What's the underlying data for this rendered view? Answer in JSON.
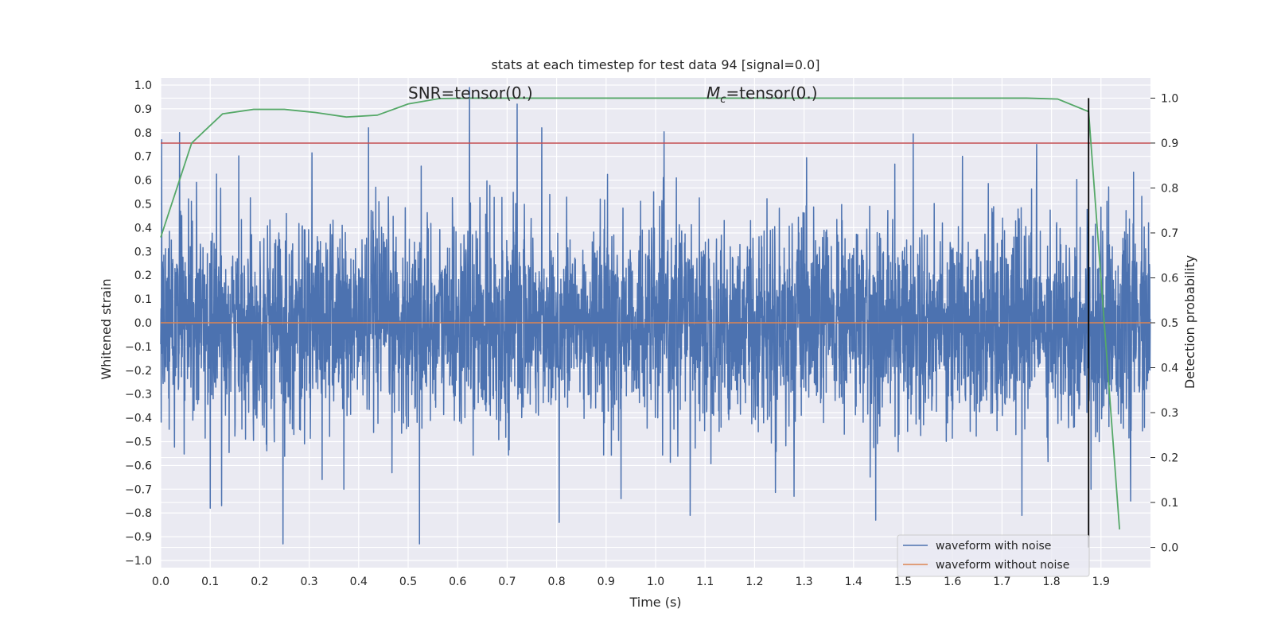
{
  "chart_data": {
    "type": "line",
    "title": "stats at each timestep for test data 94 [signal=0.0]",
    "xlabel": "Time (s)",
    "ylabel": "Whitened strain",
    "y2label": "Detection probability",
    "xlim": [
      0.0,
      2.0
    ],
    "ylim": [
      -1.03,
      1.03
    ],
    "y2lim": [
      -0.045,
      1.045
    ],
    "grid": true,
    "legend_position": "lower-right",
    "x_ticks": [
      0.0,
      0.1,
      0.2,
      0.3,
      0.4,
      0.5,
      0.6,
      0.7,
      0.8,
      0.9,
      1.0,
      1.1,
      1.2,
      1.3,
      1.4,
      1.5,
      1.6,
      1.7,
      1.8,
      1.9
    ],
    "x_tick_labels": [
      "0.0",
      "0.1",
      "0.2",
      "0.3",
      "0.4",
      "0.5",
      "0.6",
      "0.7",
      "0.8",
      "0.9",
      "1.0",
      "1.1",
      "1.2",
      "1.3",
      "1.4",
      "1.5",
      "1.6",
      "1.7",
      "1.8",
      "1.9"
    ],
    "y_ticks": [
      1.0,
      0.9,
      0.8,
      0.7,
      0.6,
      0.5,
      0.4,
      0.3,
      0.2,
      0.1,
      0.0,
      -0.1,
      -0.2,
      -0.3,
      -0.4,
      -0.5,
      -0.6,
      -0.7,
      -0.8,
      -0.9,
      -1.0
    ],
    "y_tick_labels": [
      "1.0",
      "0.9",
      "0.8",
      "0.7",
      "0.6",
      "0.5",
      "0.4",
      "0.3",
      "0.2",
      "0.1",
      "0.0",
      "−0.1",
      "−0.2",
      "−0.3",
      "−0.4",
      "−0.5",
      "−0.6",
      "−0.7",
      "−0.8",
      "−0.9",
      "−1.0"
    ],
    "y2_ticks": [
      1.0,
      0.9,
      0.8,
      0.7,
      0.6,
      0.5,
      0.4,
      0.3,
      0.2,
      0.1,
      0.0
    ],
    "y2_tick_labels": [
      "1.0",
      "0.9",
      "0.8",
      "0.7",
      "0.6",
      "0.5",
      "0.4",
      "0.3",
      "0.2",
      "0.1",
      "0.0"
    ],
    "annotations": [
      {
        "text": "SNR=tensor(0.)",
        "x": 0.5,
        "y": 1.01
      },
      {
        "text": "M_c=tensor(0.)",
        "x": 1.1,
        "y": 1.01,
        "main": "M",
        "sub": "c",
        "rest": "=tensor(0.)"
      }
    ],
    "series": [
      {
        "name": "waveform with noise",
        "color": "#4c72b0",
        "axis": "left",
        "description": "noisy whitened strain sampled at ~2048 Hz, amplitude mostly within ±0.5 with spikes",
        "sample_rate": 2048,
        "random_seed": 94,
        "spikes": [
          {
            "x": 0.002,
            "y": 0.77
          },
          {
            "x": 0.038,
            "y": 0.8
          },
          {
            "x": 0.1,
            "y": -0.78
          },
          {
            "x": 0.247,
            "y": -0.93
          },
          {
            "x": 0.37,
            "y": -0.7
          },
          {
            "x": 0.42,
            "y": 0.82
          },
          {
            "x": 0.523,
            "y": -0.93
          },
          {
            "x": 0.624,
            "y": 1.0
          },
          {
            "x": 0.72,
            "y": 0.92
          },
          {
            "x": 0.77,
            "y": 0.82
          },
          {
            "x": 0.805,
            "y": -0.84
          },
          {
            "x": 0.93,
            "y": -0.74
          },
          {
            "x": 1.07,
            "y": -0.81
          },
          {
            "x": 1.28,
            "y": -0.73
          },
          {
            "x": 1.445,
            "y": -0.83
          },
          {
            "x": 1.62,
            "y": 0.7
          },
          {
            "x": 1.74,
            "y": -0.81
          },
          {
            "x": 1.77,
            "y": 0.75
          },
          {
            "x": 1.88,
            "y": -0.7
          },
          {
            "x": 1.96,
            "y": -0.75
          }
        ]
      },
      {
        "name": "waveform without noise",
        "color": "#dd8452",
        "axis": "left",
        "x": [
          0.0,
          2.0
        ],
        "y": [
          0.0,
          0.0
        ]
      },
      {
        "color": "#55a868",
        "axis": "right",
        "x": [
          0.0,
          0.0625,
          0.125,
          0.1875,
          0.25,
          0.3125,
          0.375,
          0.4375,
          0.5,
          0.5625,
          0.625,
          0.6875,
          0.75,
          1.0,
          1.25,
          1.5,
          1.75,
          1.8125,
          1.875,
          1.9375
        ],
        "y": [
          0.69,
          0.9,
          0.965,
          0.975,
          0.975,
          0.968,
          0.958,
          0.962,
          0.987,
          0.999,
          1.0,
          1.0,
          1.0,
          1.0,
          1.0,
          1.0,
          1.0,
          0.998,
          0.97,
          0.04
        ]
      },
      {
        "color": "#c44e52",
        "axis": "right",
        "type": "hline",
        "y": 0.9
      },
      {
        "color": "#000000",
        "axis": "right",
        "type": "vline",
        "x": 1.875,
        "y_range": [
          0.0,
          1.0
        ]
      }
    ],
    "legend": [
      "waveform with noise",
      "waveform without noise"
    ]
  }
}
